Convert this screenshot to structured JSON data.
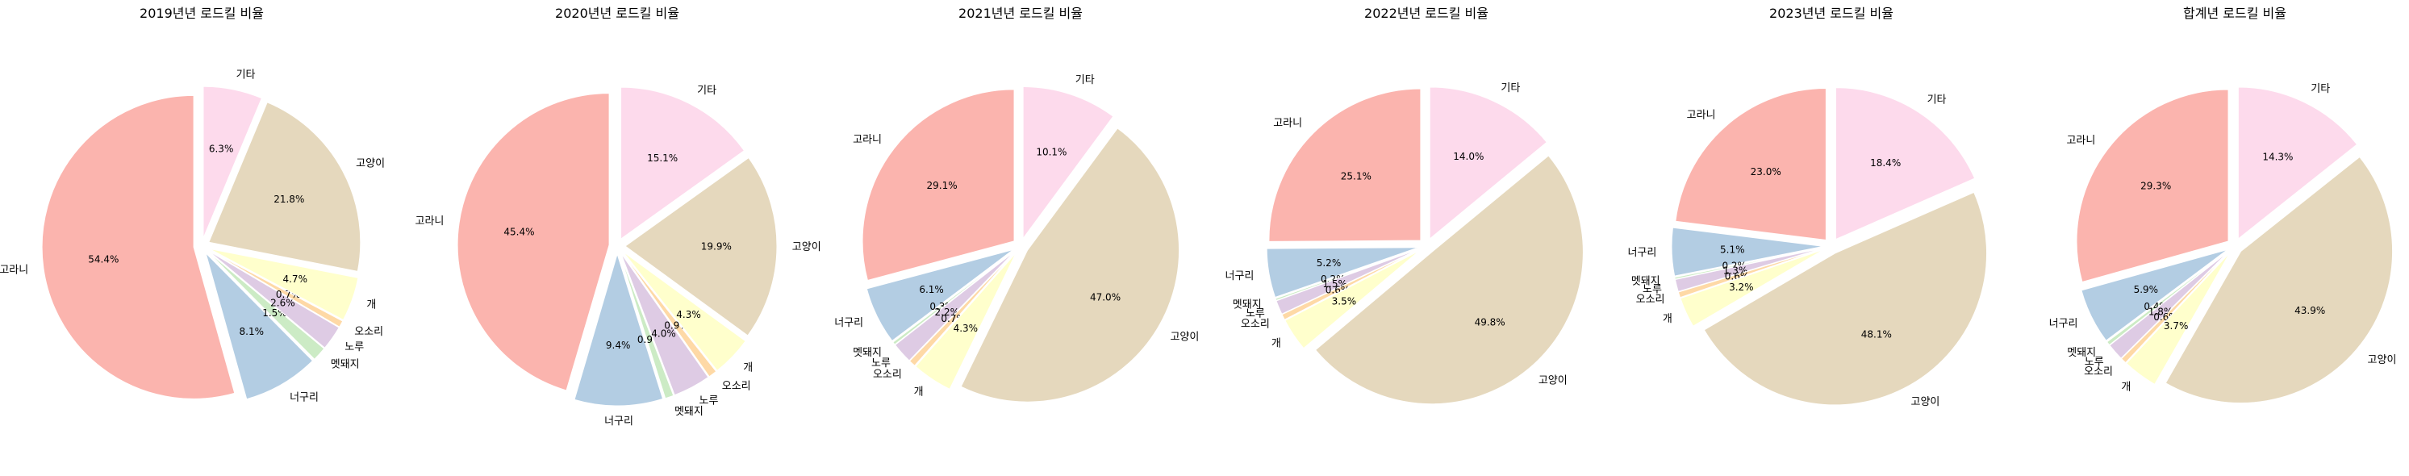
{
  "palette": [
    "#fbb4ae",
    "#b3cde3",
    "#ccebc5",
    "#decbe4",
    "#fed9a6",
    "#ffffcc",
    "#e5d8bd",
    "#fddaec"
  ],
  "chart_data": [
    {
      "type": "pie",
      "title": "2019년년 로드킬 비율",
      "labels": [
        "고라니",
        "너구리",
        "멧돼지",
        "노루",
        "오소리",
        "개",
        "고양이",
        "기타"
      ],
      "values": [
        54.4,
        8.1,
        1.5,
        2.6,
        0.7,
        4.7,
        21.8,
        6.3
      ],
      "pct_labels": [
        "54.4%",
        "8.1%",
        "1.5%",
        "2.6%",
        "0.7%",
        "4.7%",
        "21.8%",
        "6.3%"
      ],
      "start_angle_deg": 90,
      "direction": "counterclockwise",
      "exploded": true
    },
    {
      "type": "pie",
      "title": "2020년년 로드킬 비율",
      "labels": [
        "고라니",
        "너구리",
        "멧돼지",
        "노루",
        "오소리",
        "개",
        "고양이",
        "기타"
      ],
      "values": [
        45.4,
        9.4,
        0.9,
        4.0,
        0.9,
        4.3,
        19.9,
        15.1
      ],
      "pct_labels": [
        "45.4%",
        "9.4%",
        "0.9%",
        "4.0%",
        "0.9%",
        "4.3%",
        "19.9%",
        "15.1%"
      ],
      "start_angle_deg": 90,
      "direction": "counterclockwise",
      "exploded": true
    },
    {
      "type": "pie",
      "title": "2021년년 로드킬 비율",
      "labels": [
        "고라니",
        "너구리",
        "멧돼지",
        "노루",
        "오소리",
        "개",
        "고양이",
        "기타"
      ],
      "values": [
        29.1,
        6.1,
        0.3,
        2.2,
        0.7,
        4.3,
        47.0,
        10.1
      ],
      "pct_labels": [
        "29.1%",
        "6.1%",
        "0.3%",
        "2.2%",
        "0.7%",
        "4.3%",
        "47.0%",
        "10.1%"
      ],
      "start_angle_deg": 90,
      "direction": "counterclockwise",
      "exploded": true
    },
    {
      "type": "pie",
      "title": "2022년년 로드킬 비율",
      "labels": [
        "고라니",
        "너구리",
        "멧돼지",
        "노루",
        "오소리",
        "개",
        "고양이",
        "기타"
      ],
      "values": [
        25.1,
        5.2,
        0.2,
        1.5,
        0.6,
        3.5,
        49.8,
        14.0
      ],
      "pct_labels": [
        "25.1%",
        "5.2%",
        "0.2%",
        "1.5%",
        "0.6%",
        "3.5%",
        "49.8%",
        "14.0%"
      ],
      "start_angle_deg": 90,
      "direction": "counterclockwise",
      "exploded": true
    },
    {
      "type": "pie",
      "title": "2023년년 로드킬 비율",
      "labels": [
        "고라니",
        "너구리",
        "멧돼지",
        "노루",
        "오소리",
        "개",
        "고양이",
        "기타"
      ],
      "values": [
        23.0,
        5.1,
        0.2,
        1.3,
        0.6,
        3.2,
        48.1,
        18.4
      ],
      "pct_labels": [
        "23.0%",
        "5.1%",
        "0.2%",
        "1.3%",
        "0.6%",
        "3.2%",
        "48.1%",
        "18.4%"
      ],
      "start_angle_deg": 90,
      "direction": "counterclockwise",
      "exploded": true
    },
    {
      "type": "pie",
      "title": "합계년 로드킬 비율",
      "labels": [
        "고라니",
        "너구리",
        "멧돼지",
        "노루",
        "오소리",
        "개",
        "고양이",
        "기타"
      ],
      "values": [
        29.3,
        5.9,
        0.4,
        1.8,
        0.6,
        3.7,
        43.9,
        14.3
      ],
      "pct_labels": [
        "29.3%",
        "5.9%",
        "0.4%",
        "1.8%",
        "0.6%",
        "3.7%",
        "43.9%",
        "14.3%"
      ],
      "start_angle_deg": 90,
      "direction": "counterclockwise",
      "exploded": true
    }
  ]
}
